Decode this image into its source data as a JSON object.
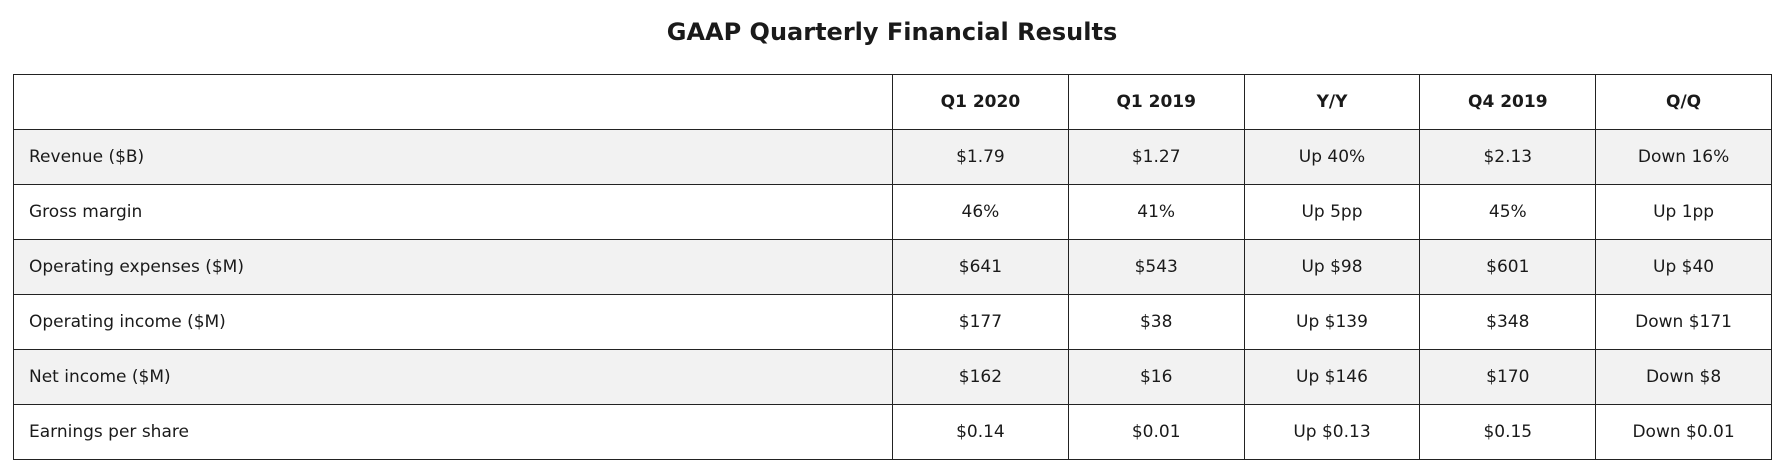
{
  "title": "GAAP Quarterly Financial Results",
  "table": {
    "columns": [
      "",
      "Q1 2020",
      "Q1 2019",
      "Y/Y",
      "Q4 2019",
      "Q/Q"
    ],
    "rows": [
      [
        "Revenue ($B)",
        "$1.79",
        "$1.27",
        "Up 40%",
        "$2.13",
        "Down 16%"
      ],
      [
        "Gross margin",
        "46%",
        "41%",
        "Up 5pp",
        "45%",
        "Up 1pp"
      ],
      [
        "Operating expenses ($M)",
        "$641",
        "$543",
        "Up $98",
        "$601",
        "Up $40"
      ],
      [
        "Operating income ($M)",
        "$177",
        "$38",
        "Up $139",
        "$348",
        "Down $171"
      ],
      [
        "Net income ($M)",
        "$162",
        "$16",
        "Up $146",
        "$170",
        "Down $8"
      ],
      [
        "Earnings per share",
        "$0.14",
        "$0.01",
        "Up $0.13",
        "$0.15",
        "Down $0.01"
      ]
    ]
  },
  "colors": {
    "shaded_row": "#f2f2f2",
    "plain_row": "#ffffff",
    "border": "#222222"
  }
}
